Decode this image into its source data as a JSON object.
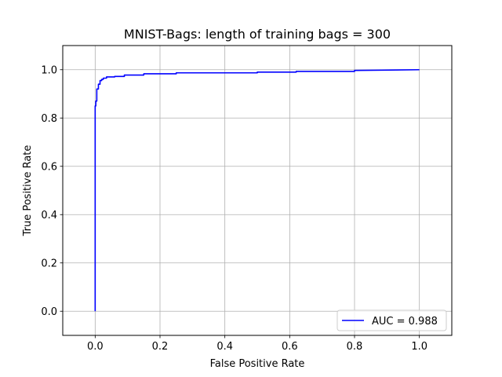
{
  "chart_data": {
    "type": "line",
    "title": "MNIST-Bags: length of training bags = 300",
    "xlabel": "False Positive Rate",
    "ylabel": "True Positive Rate",
    "xlim": [
      -0.1,
      1.1
    ],
    "ylim": [
      -0.1,
      1.1
    ],
    "xticks": [
      0.0,
      0.2,
      0.4,
      0.6,
      0.8,
      1.0
    ],
    "xtick_labels": [
      "0.0",
      "0.2",
      "0.4",
      "0.6",
      "0.8",
      "1.0"
    ],
    "yticks": [
      0.0,
      0.2,
      0.4,
      0.6,
      0.8,
      1.0
    ],
    "ytick_labels": [
      "0.0",
      "0.2",
      "0.4",
      "0.6",
      "0.8",
      "1.0"
    ],
    "grid": true,
    "legend_position": "lower-right",
    "series": [
      {
        "name": "AUC = 0.988",
        "color": "#0000ff",
        "x": [
          0.0,
          0.0,
          0.002,
          0.002,
          0.005,
          0.005,
          0.01,
          0.01,
          0.015,
          0.015,
          0.02,
          0.02,
          0.025,
          0.025,
          0.035,
          0.035,
          0.06,
          0.06,
          0.09,
          0.09,
          0.15,
          0.15,
          0.25,
          0.25,
          0.5,
          0.5,
          0.62,
          0.62,
          0.8,
          0.8,
          1.0
        ],
        "y": [
          0.0,
          0.85,
          0.85,
          0.87,
          0.87,
          0.92,
          0.92,
          0.94,
          0.94,
          0.955,
          0.955,
          0.96,
          0.96,
          0.965,
          0.965,
          0.97,
          0.97,
          0.972,
          0.972,
          0.978,
          0.978,
          0.983,
          0.983,
          0.987,
          0.987,
          0.99,
          0.99,
          0.993,
          0.993,
          0.997,
          1.0
        ]
      }
    ]
  }
}
